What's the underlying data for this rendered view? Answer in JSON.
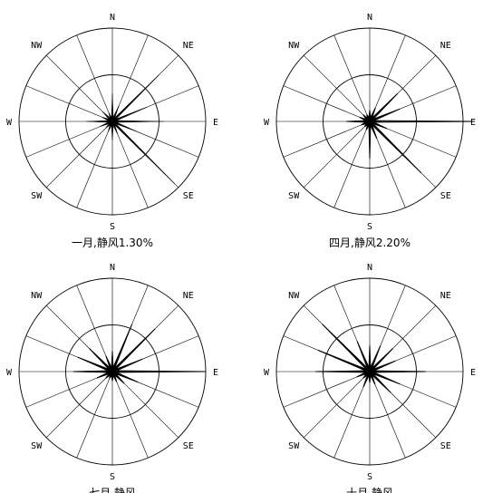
{
  "chart_data": [
    {
      "type": "wind-rose",
      "caption": "一月,静风1.30%",
      "direction_labels": [
        "N",
        "NE",
        "E",
        "SE",
        "S",
        "SW",
        "W",
        "NW"
      ],
      "rings": [
        0.5,
        1.0
      ],
      "sectors": [
        "N",
        "NNE",
        "NE",
        "ENE",
        "E",
        "ESE",
        "SE",
        "SSE",
        "S",
        "SSW",
        "SW",
        "WSW",
        "W",
        "WNW",
        "NW",
        "NNW"
      ],
      "series": [
        {
          "name": "",
          "style": "filled",
          "values": [
            0.3,
            0.18,
            0.7,
            0.4,
            0.55,
            0.28,
            0.95,
            0.15,
            0.2,
            0.12,
            0.1,
            0.15,
            0.28,
            0.12,
            0.15,
            0.1
          ]
        }
      ]
    },
    {
      "type": "wind-rose",
      "caption": "四月,静风2.20%",
      "direction_labels": [
        "N",
        "NE",
        "E",
        "SE",
        "S",
        "SW",
        "W",
        "NW"
      ],
      "rings": [
        0.5,
        1.0
      ],
      "sectors": [
        "N",
        "NNE",
        "NE",
        "ENE",
        "E",
        "ESE",
        "SE",
        "SSE",
        "S",
        "SSW",
        "SW",
        "WSW",
        "W",
        "WNW",
        "NW",
        "NNW"
      ],
      "series": [
        {
          "name": "",
          "style": "filled",
          "values": [
            0.1,
            0.15,
            0.4,
            0.3,
            0.12,
            0.12,
            0.1,
            0.1,
            0.1,
            0.05,
            0.05,
            0.08,
            0.22,
            0.1,
            0.08,
            0.05
          ]
        },
        {
          "name": "",
          "style": "outline",
          "values": [
            0.12,
            0.16,
            0.42,
            0.35,
            1.12,
            0.2,
            0.78,
            0.2,
            0.4,
            0.1,
            0.08,
            0.1,
            0.25,
            0.12,
            0.1,
            0.08
          ]
        }
      ]
    },
    {
      "type": "wind-rose",
      "caption": "七月,静风",
      "direction_labels": [
        "N",
        "NE",
        "E",
        "SE",
        "S",
        "SW",
        "W",
        "NW"
      ],
      "rings": [
        0.5,
        1.0
      ],
      "sectors": [
        "N",
        "NNE",
        "NE",
        "ENE",
        "E",
        "ESE",
        "SE",
        "SSE",
        "S",
        "SSW",
        "SW",
        "WSW",
        "W",
        "WNW",
        "NW",
        "NNW"
      ],
      "series": [
        {
          "name": "",
          "style": "filled",
          "values": [
            0.2,
            0.35,
            0.6,
            0.3,
            0.8,
            0.25,
            0.15,
            0.1,
            0.1,
            0.08,
            0.1,
            0.15,
            0.4,
            0.38,
            0.3,
            0.15
          ]
        },
        {
          "name": "",
          "style": "outline",
          "values": [
            0.22,
            0.55,
            0.65,
            0.35,
            1.0,
            0.3,
            0.18,
            0.12,
            0.1,
            0.08,
            0.1,
            0.18,
            0.42,
            0.4,
            0.35,
            0.18
          ]
        }
      ]
    },
    {
      "type": "wind-rose",
      "caption": "十月,静风",
      "direction_labels": [
        "N",
        "NE",
        "E",
        "SE",
        "S",
        "SW",
        "W",
        "NW"
      ],
      "rings": [
        0.5,
        1.0
      ],
      "sectors": [
        "N",
        "NNE",
        "NE",
        "ENE",
        "E",
        "ESE",
        "SE",
        "SSE",
        "S",
        "SSW",
        "SW",
        "WSW",
        "W",
        "WNW",
        "NW",
        "NNW"
      ],
      "series": [
        {
          "name": "",
          "style": "filled",
          "values": [
            0.12,
            0.2,
            0.3,
            0.28,
            0.35,
            0.3,
            0.3,
            0.12,
            0.1,
            0.1,
            0.08,
            0.12,
            0.38,
            0.55,
            0.65,
            0.3
          ]
        },
        {
          "name": "",
          "style": "outline",
          "values": [
            0.28,
            0.3,
            0.35,
            0.3,
            0.6,
            0.35,
            0.32,
            0.15,
            0.12,
            0.18,
            0.1,
            0.15,
            0.58,
            0.6,
            0.72,
            0.35
          ]
        }
      ]
    }
  ]
}
